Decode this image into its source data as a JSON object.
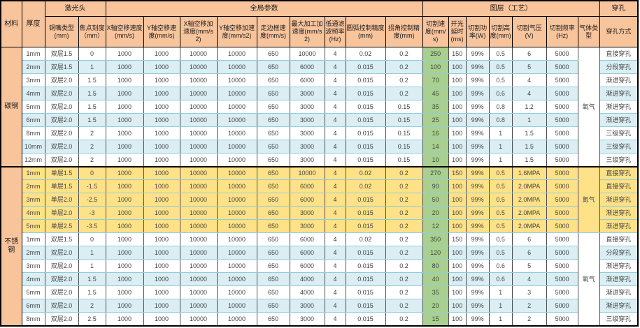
{
  "table": {
    "groups": [
      {
        "label": "材料",
        "rowspan": 2,
        "colspan": 1
      },
      {
        "label": "厚度",
        "rowspan": 2,
        "colspan": 1
      },
      {
        "label": "激光头",
        "rowspan": 1,
        "colspan": 2
      },
      {
        "label": "全局参数",
        "rowspan": 1,
        "colspan": 9
      },
      {
        "label": "图层（工艺）",
        "rowspan": 1,
        "colspan": 7
      },
      {
        "label": "穿孔",
        "rowspan": 1,
        "colspan": 1
      }
    ],
    "columns": [
      "铜嘴类型(mm)",
      "焦点刻度（mm）",
      "X轴空移速度(mm/s)",
      "Y轴空移速度(mm/s)",
      "X轴空移加速度(mm/s2)",
      "Y轴空移加速度(mm/s2)",
      "走边框速度(mm/s)",
      "最大加工加速度(mm/s2)",
      "低通滤波频率(Hz)",
      "圆弧控制精度(mm)",
      "拐角控制精度(mm)",
      "切割速度(mm/s)",
      "开光延时(ms)",
      "切割功率(W)",
      "切割高度(mm)",
      "切割气压(V)",
      "切割频率(Hz)",
      "气体类型",
      "穿孔方式"
    ],
    "sections": [
      {
        "material": "碳钢",
        "gas_groups": [
          {
            "gas": "氧气",
            "span": 9,
            "bg": "w"
          }
        ],
        "rows": [
          {
            "bg": "w",
            "cells": [
              "1mm",
              "双层1.5",
              "0",
              "1000",
              "1000",
              "10000",
              "10000",
              "650",
              "10000",
              "4",
              "0.02",
              "0.2",
              "250",
              "150",
              "99%",
              "0.5",
              "6",
              "5000",
              "直接穿孔"
            ]
          },
          {
            "bg": "b",
            "cells": [
              "2mm",
              "双层1.5",
              "1",
              "1000",
              "1000",
              "10000",
              "10000",
              "650",
              "6000",
              "4",
              "0.015",
              "0.2",
              "100",
              "100",
              "99%",
              "0.5",
              "5",
              "5000",
              "分段穿孔"
            ]
          },
          {
            "bg": "w",
            "cells": [
              "3mm",
              "双层2.0",
              "1.5",
              "1000",
              "1000",
              "10000",
              "10000",
              "650",
              "6000",
              "4",
              "0.015",
              "0.2",
              "70",
              "100",
              "99%",
              "0.5",
              "4",
              "5000",
              "渐进穿孔"
            ]
          },
          {
            "bg": "b",
            "cells": [
              "4mm",
              "双层2.0",
              "1.5",
              "1000",
              "1000",
              "10000",
              "10000",
              "650",
              "3000",
              "4",
              "0.015",
              "0.2",
              "45",
              "100",
              "99%",
              "0.6",
              "4",
              "5000",
              "渐进穿孔"
            ]
          },
          {
            "bg": "w",
            "cells": [
              "5mm",
              "双层2.0",
              "1.5",
              "1000",
              "1000",
              "10000",
              "10000",
              "650",
              "3000",
              "4",
              "0.015",
              "0.15",
              "35",
              "100",
              "99%",
              "0.8",
              "1.2",
              "5000",
              "渐进穿孔"
            ]
          },
          {
            "bg": "b",
            "cells": [
              "6mm",
              "双层2.0",
              "1.5",
              "1000",
              "1000",
              "10000",
              "10000",
              "650",
              "3000",
              "4",
              "0.015",
              "0.15",
              "25",
              "100",
              "99%",
              "0.8",
              "1",
              "5000",
              "渐进穿孔"
            ]
          },
          {
            "bg": "w",
            "cells": [
              "8mm",
              "双层2.0",
              "2",
              "1000",
              "1000",
              "10000",
              "10000",
              "650",
              "3000",
              "4",
              "0.015",
              "0.15",
              "16",
              "100",
              "99%",
              "1",
              "1.5",
              "5000",
              "三级穿孔"
            ]
          },
          {
            "bg": "b",
            "cells": [
              "10mm",
              "双层2.0",
              "2",
              "1000",
              "1000",
              "10000",
              "10000",
              "650",
              "3000",
              "4",
              "0.015",
              "0.15",
              "14",
              "100",
              "99%",
              "1",
              "1.5",
              "5000",
              "三级穿孔"
            ]
          },
          {
            "bg": "w",
            "cells": [
              "12mm",
              "双层2.0",
              "2",
              "1000",
              "1000",
              "10000",
              "10000",
              "650",
              "3000",
              "4",
              "0.015",
              "0.15",
              "10",
              "100",
              "99%",
              "1",
              "1.5",
              "5000",
              "三级穿孔"
            ]
          }
        ]
      },
      {
        "material": "不锈钢",
        "gas_groups": [
          {
            "gas": "氮气",
            "span": 5,
            "bg": "y"
          },
          {
            "gas": "氧气",
            "span": 7,
            "bg": "w"
          }
        ],
        "rows": [
          {
            "bg": "y",
            "cells": [
              "1mm",
              "单层1.5",
              "0",
              "1000",
              "1000",
              "10000",
              "10000",
              "650",
              "10000",
              "4",
              "0.02",
              "0.2",
              "270",
              "150",
              "99%",
              "0.5",
              "1.6MPA",
              "5000",
              "直接穿孔"
            ]
          },
          {
            "bg": "y",
            "cells": [
              "2mm",
              "单层1.5",
              "-1.5",
              "1000",
              "1000",
              "10000",
              "10000",
              "650",
              "6000",
              "4",
              "0.02",
              "0.2",
              "90",
              "100",
              "99%",
              "0.5",
              "2.0MPA",
              "5000",
              "直接穿孔"
            ]
          },
          {
            "bg": "y",
            "cells": [
              "3mm",
              "单层2.0",
              "-2.5",
              "1000",
              "1000",
              "10000",
              "10000",
              "650",
              "6000",
              "4",
              "0.015",
              "0.2",
              "50",
              "100",
              "99%",
              "0.5",
              "2.0MPA",
              "5000",
              "渐进穿孔"
            ]
          },
          {
            "bg": "y",
            "cells": [
              "4mm",
              "单层2.0",
              "-3",
              "1000",
              "1000",
              "10000",
              "10000",
              "650",
              "3000",
              "4",
              "0.015",
              "0.2",
              "20",
              "100",
              "99%",
              "0.5",
              "2.0MPA",
              "5000",
              "渐进穿孔"
            ]
          },
          {
            "bg": "y",
            "cells": [
              "5mm",
              "单层2.5",
              "-3.5",
              "1000",
              "1000",
              "10000",
              "10000",
              "650",
              "3000",
              "4",
              "0.015",
              "0.2",
              "12",
              "100",
              "99%",
              "0.5",
              "2.0MPA",
              "5000",
              "渐进穿孔"
            ]
          },
          {
            "bg": "w",
            "cells": [
              "1mm",
              "双层1.5",
              "0",
              "1000",
              "1000",
              "10000",
              "10000",
              "650",
              "6000",
              "4",
              "0.02",
              "0.2",
              "350",
              "150",
              "99%",
              "0.5",
              "6",
              "5000",
              "直接穿孔"
            ]
          },
          {
            "bg": "b",
            "cells": [
              "2mm",
              "双层2.0",
              "1",
              "1000",
              "1000",
              "10000",
              "10000",
              "650",
              "6000",
              "4",
              "0.015",
              "0.2",
              "120",
              "100",
              "99%",
              "0.5",
              "6",
              "5000",
              "分段穿孔"
            ]
          },
          {
            "bg": "w",
            "cells": [
              "3mm",
              "双层2.0",
              "1",
              "1000",
              "1000",
              "10000",
              "10000",
              "650",
              "6000",
              "4",
              "0.015",
              "0.2",
              "80",
              "100",
              "99%",
              "0.6",
              "5",
              "5000",
              "渐进穿孔"
            ]
          },
          {
            "bg": "b",
            "cells": [
              "4mm",
              "双层2.0",
              "1.5",
              "1000",
              "1000",
              "10000",
              "10000",
              "650",
              "4000",
              "4",
              "0.015",
              "0.2",
              "40",
              "100",
              "99%",
              "0.6",
              "4",
              "5000",
              "渐进穿孔"
            ]
          },
          {
            "bg": "w",
            "cells": [
              "5mm",
              "双层2.0",
              "1.5",
              "1000",
              "1000",
              "10000",
              "10000",
              "650",
              "4000",
              "4",
              "0.015",
              "0.2",
              "35",
              "100",
              "99%",
              "1",
              "3",
              "5000",
              "渐进穿孔"
            ]
          },
          {
            "bg": "b",
            "cells": [
              "6mm",
              "双层2.0",
              "2",
              "1000",
              "1000",
              "10000",
              "10000",
              "650",
              "3000",
              "4",
              "0.015",
              "0.2",
              "20",
              "100",
              "99%",
              "1",
              "2",
              "5000",
              "渐进穿孔"
            ]
          },
          {
            "bg": "w",
            "cells": [
              "8mm",
              "双层2.0",
              "2.5",
              "1000",
              "1000",
              "10000",
              "10000",
              "650",
              "3000",
              "4",
              "0.015",
              "0.2",
              "15",
              "100",
              "99%",
              "1",
              "2",
              "5000",
              "三级穿孔"
            ]
          }
        ]
      }
    ]
  },
  "colors": {
    "header_bg": "#F8C49C",
    "row_blue": "#DAEEF3",
    "row_yellow": "#FFE287",
    "col_green": "#A9D08E",
    "grid_h": "#92CDDC",
    "grid_v": "#4D4D4D",
    "frame": "#000000",
    "text": "#454545"
  }
}
